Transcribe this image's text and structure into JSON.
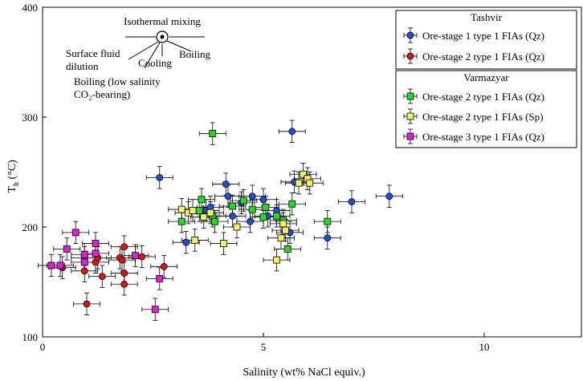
{
  "chart_data": {
    "type": "scatter",
    "xlabel": "Salinity (wt% NaCl equiv.)",
    "ylabel_main": "T",
    "ylabel_sub": "h",
    "ylabel_unit": " (°C)",
    "xlim": [
      0,
      12.2
    ],
    "ylim": [
      100,
      400
    ],
    "xticks": [
      0,
      5,
      10
    ],
    "yticks": [
      100,
      200,
      300,
      400
    ],
    "x_error": 0.3,
    "y_error": 10,
    "annotation": {
      "isothermal": "Isothermal mixing",
      "surface_line1": "Surface fluid",
      "surface_line2": "dilution",
      "cooling": "Cooling",
      "boiling": "Boiling",
      "boiling_low_line1": "Boiling (low salinity",
      "boiling_low_line2": "CO₂-bearing)"
    },
    "legend_groups": [
      {
        "title": "Tashvir",
        "series_index": [
          0,
          1
        ]
      },
      {
        "title": "Varmazyar",
        "series_index": [
          2,
          3,
          4
        ]
      }
    ],
    "series": [
      {
        "name": "Ore-stage 1 type 1 FIAs (Qz)",
        "marker": "circle",
        "color": "#1f4fd8",
        "points": [
          [
            2.65,
            245
          ],
          [
            3.25,
            186
          ],
          [
            3.7,
            215
          ],
          [
            3.8,
            218
          ],
          [
            4.15,
            239
          ],
          [
            4.2,
            228
          ],
          [
            4.3,
            210
          ],
          [
            4.5,
            222
          ],
          [
            4.7,
            205
          ],
          [
            4.75,
            228
          ],
          [
            5.0,
            225
          ],
          [
            5.1,
            210
          ],
          [
            5.3,
            215
          ],
          [
            5.6,
            195
          ],
          [
            5.65,
            287
          ],
          [
            5.7,
            241
          ],
          [
            6.45,
            190
          ],
          [
            7.0,
            223
          ],
          [
            7.85,
            228
          ]
        ]
      },
      {
        "name": "Ore-stage 2 type 1 FIAs (Qz)",
        "marker": "circle",
        "color": "#e01010",
        "points": [
          [
            0.45,
            163
          ],
          [
            0.95,
            160
          ],
          [
            1.0,
            130
          ],
          [
            1.2,
            168
          ],
          [
            1.25,
            172
          ],
          [
            1.35,
            155
          ],
          [
            1.75,
            172
          ],
          [
            1.8,
            170
          ],
          [
            1.85,
            182
          ],
          [
            1.85,
            158
          ],
          [
            1.85,
            148
          ],
          [
            2.25,
            173
          ],
          [
            2.75,
            164
          ]
        ]
      },
      {
        "name": "Ore-stage 2 type 1 FIAs (Qz)",
        "marker": "square",
        "color": "#22dd22",
        "points": [
          [
            3.15,
            205
          ],
          [
            3.55,
            215
          ],
          [
            3.6,
            225
          ],
          [
            3.85,
            285
          ],
          [
            3.85,
            210
          ],
          [
            3.9,
            205
          ],
          [
            4.3,
            219
          ],
          [
            4.55,
            224
          ],
          [
            4.75,
            216
          ],
          [
            5.0,
            209
          ],
          [
            5.05,
            218
          ],
          [
            5.3,
            210
          ],
          [
            5.45,
            206
          ],
          [
            5.55,
            180
          ],
          [
            5.65,
            221
          ],
          [
            6.45,
            205
          ]
        ]
      },
      {
        "name": "Ore-stage 2 type 1 FIAs (Sp)",
        "marker": "square",
        "color": "#f5f06a",
        "points": [
          [
            3.15,
            216
          ],
          [
            3.3,
            213
          ],
          [
            3.4,
            215
          ],
          [
            3.45,
            188
          ],
          [
            3.65,
            209
          ],
          [
            3.8,
            213
          ],
          [
            4.1,
            185
          ],
          [
            4.4,
            200
          ],
          [
            5.3,
            170
          ],
          [
            5.4,
            190
          ],
          [
            5.45,
            203
          ],
          [
            5.5,
            197
          ],
          [
            5.8,
            240
          ],
          [
            5.9,
            248
          ],
          [
            6.0,
            244
          ],
          [
            6.05,
            240
          ]
        ]
      },
      {
        "name": "Ore-stage 3 type 1 FIAs (Qz)",
        "marker": "square",
        "color": "#e020d8",
        "points": [
          [
            0.2,
            165
          ],
          [
            0.4,
            165
          ],
          [
            0.55,
            180
          ],
          [
            0.75,
            195
          ],
          [
            0.95,
            172
          ],
          [
            0.95,
            168
          ],
          [
            0.95,
            175
          ],
          [
            1.2,
            185
          ],
          [
            1.2,
            176
          ],
          [
            2.1,
            174
          ],
          [
            2.55,
            125
          ],
          [
            2.65,
            153
          ]
        ]
      }
    ]
  }
}
